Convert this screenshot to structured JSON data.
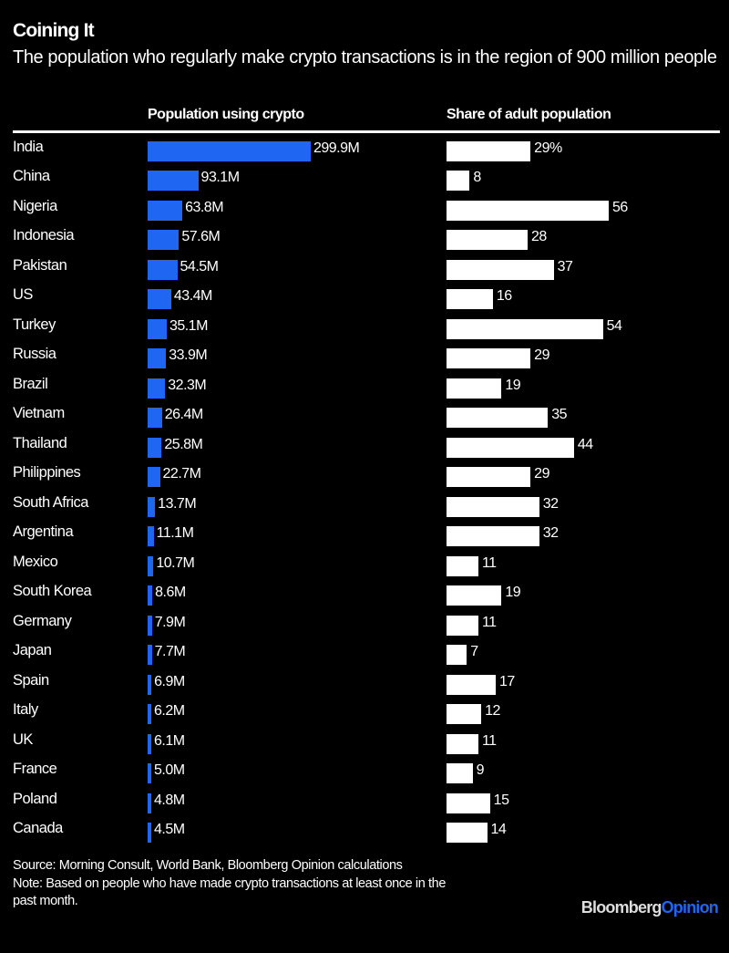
{
  "chart_data": {
    "type": "bar",
    "title": "Coining It",
    "subtitle": "The population who regularly make crypto transactions is in the region of 900 million people",
    "categories": [
      "India",
      "China",
      "Nigeria",
      "Indonesia",
      "Pakistan",
      "US",
      "Turkey",
      "Russia",
      "Brazil",
      "Vietnam",
      "Thailand",
      "Philippines",
      "South Africa",
      "Argentina",
      "Mexico",
      "South Korea",
      "Germany",
      "Japan",
      "Spain",
      "Italy",
      "UK",
      "France",
      "Poland",
      "Canada"
    ],
    "series": [
      {
        "name": "Population using crypto",
        "unit": "M",
        "color": "#1f66f2",
        "values": [
          299.9,
          93.1,
          63.8,
          57.6,
          54.5,
          43.4,
          35.1,
          33.9,
          32.3,
          26.4,
          25.8,
          22.7,
          13.7,
          11.1,
          10.7,
          8.6,
          7.9,
          7.7,
          6.9,
          6.2,
          6.1,
          5.0,
          4.8,
          4.5
        ],
        "labels": [
          "299.9M",
          "93.1M",
          "63.8M",
          "57.6M",
          "54.5M",
          "43.4M",
          "35.1M",
          "33.9M",
          "32.3M",
          "26.4M",
          "25.8M",
          "22.7M",
          "13.7M",
          "11.1M",
          "10.7M",
          "8.6M",
          "7.9M",
          "7.7M",
          "6.9M",
          "6.2M",
          "6.1M",
          "5.0M",
          "4.8M",
          "4.5M"
        ]
      },
      {
        "name": "Share of adult population",
        "unit": "%",
        "color": "#ffffff",
        "values": [
          29,
          8,
          56,
          28,
          37,
          16,
          54,
          29,
          19,
          35,
          44,
          29,
          32,
          32,
          11,
          19,
          11,
          7,
          17,
          12,
          11,
          9,
          15,
          14
        ],
        "labels": [
          "29%",
          "8",
          "56",
          "28",
          "37",
          "16",
          "54",
          "29",
          "19",
          "35",
          "44",
          "29",
          "32",
          "32",
          "11",
          "19",
          "11",
          "7",
          "17",
          "12",
          "11",
          "9",
          "15",
          "14"
        ]
      }
    ],
    "orientation": "horizontal",
    "grid": false,
    "legend": "column headers"
  },
  "footer": {
    "source": "Source: Morning Consult, World Bank, Bloomberg Opinion calculations",
    "note_line1": "Note: Based on people who have made crypto transactions at least once in the",
    "note_line2": "past month.",
    "logo_main": "Bloomberg",
    "logo_accent": "Opinion",
    "logo_accent_color": "#1f66f2"
  }
}
